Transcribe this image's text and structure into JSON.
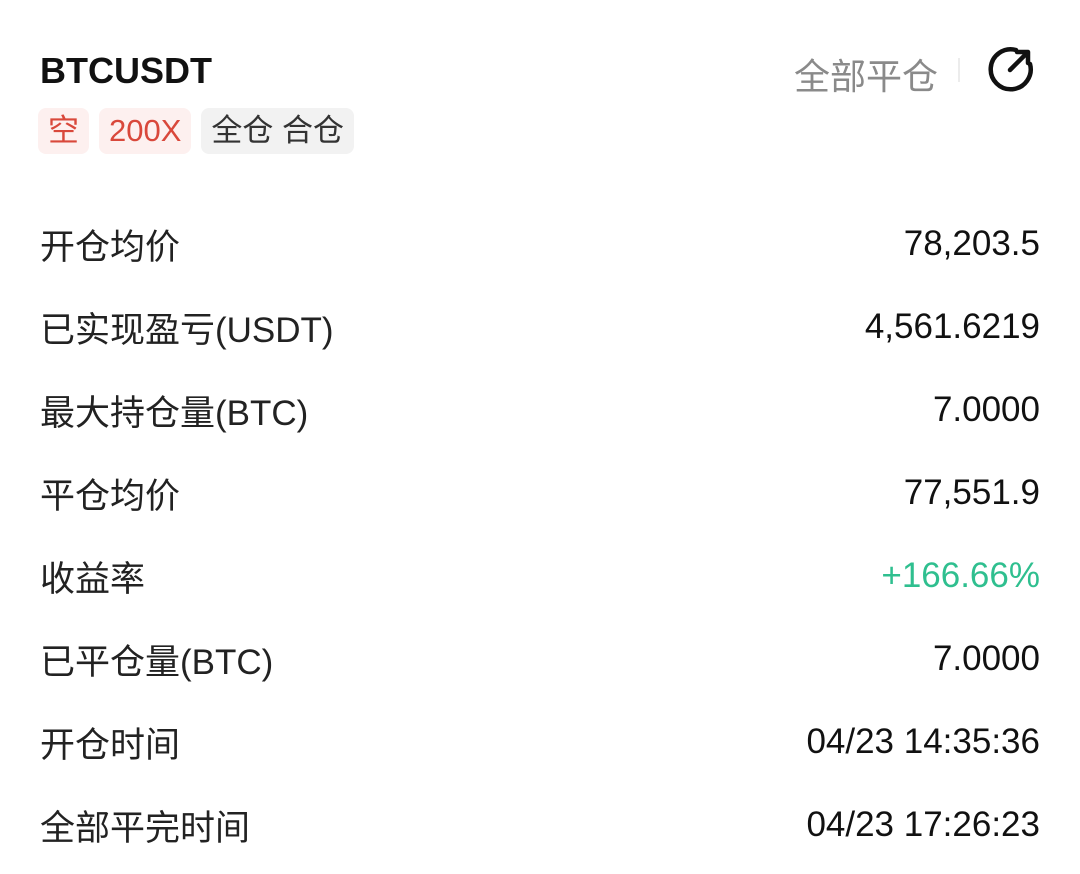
{
  "header": {
    "symbol": "BTCUSDT",
    "close_all_label": "全部平仓",
    "share_icon": "share-arrow-icon"
  },
  "tags": [
    {
      "label": "空",
      "style": "red"
    },
    {
      "label": "200X",
      "style": "red"
    },
    {
      "label": "全仓 合仓",
      "style": "gray"
    }
  ],
  "rows": [
    {
      "label": "开仓均价",
      "value": "78,203.5"
    },
    {
      "label": "已实现盈亏(USDT)",
      "value": "4,561.6219"
    },
    {
      "label": "最大持仓量(BTC)",
      "value": "7.0000"
    },
    {
      "label": "平仓均价",
      "value": "77,551.9"
    },
    {
      "label": "收益率",
      "value": "+166.66%",
      "color": "#2fbf8f"
    },
    {
      "label": "已平仓量(BTC)",
      "value": "7.0000"
    },
    {
      "label": "开仓时间",
      "value": "04/23 14:35:36"
    },
    {
      "label": "全部平完时间",
      "value": "04/23 17:26:23"
    }
  ]
}
